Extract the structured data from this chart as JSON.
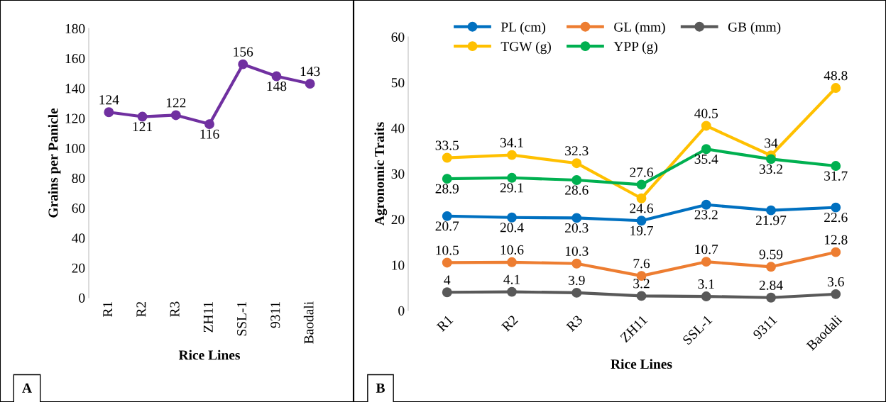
{
  "chart_data": [
    {
      "type": "line",
      "xlabel": "Rice Lines",
      "ylabel": "Grains per Panicle",
      "categories": [
        "R1",
        "R2",
        "R3",
        "ZH11",
        "SSL-1",
        "9311",
        "Baodali"
      ],
      "series": [
        {
          "color": "#7030a0",
          "values": [
            124,
            121,
            122,
            116,
            156,
            148,
            143
          ]
        }
      ],
      "ylim": [
        0,
        180
      ],
      "yticks": [
        0,
        20,
        40,
        60,
        80,
        100,
        120,
        140,
        160,
        180
      ],
      "data_labels": true,
      "marker": "circle",
      "grid": false,
      "legend": false,
      "annotations": [
        "A"
      ]
    },
    {
      "type": "line",
      "xlabel": "Rice Lines",
      "ylabel": "Agronomic Traits",
      "categories": [
        "R1",
        "R2",
        "R3",
        "ZH11",
        "SSL-1",
        "9311",
        "Baodali"
      ],
      "series": [
        {
          "name": "PL (cm)",
          "color": "#0070c0",
          "values": [
            20.7,
            20.4,
            20.3,
            19.7,
            23.2,
            21.97,
            22.6
          ]
        },
        {
          "name": "GL (mm)",
          "color": "#ed7d31",
          "values": [
            10.5,
            10.6,
            10.3,
            7.6,
            10.7,
            9.59,
            12.8
          ]
        },
        {
          "name": "GB (mm)",
          "color": "#595959",
          "values": [
            4,
            4.1,
            3.9,
            3.2,
            3.1,
            2.84,
            3.6
          ]
        },
        {
          "name": "TGW (g)",
          "color": "#ffc000",
          "values": [
            33.5,
            34.1,
            32.3,
            24.6,
            40.5,
            34,
            48.8
          ]
        },
        {
          "name": "YPP (g)",
          "color": "#00b050",
          "values": [
            28.9,
            29.1,
            28.6,
            27.6,
            35.4,
            33.2,
            31.7
          ]
        }
      ],
      "ylim": [
        0,
        60
      ],
      "yticks": [
        0,
        10,
        20,
        30,
        40,
        50,
        60
      ],
      "data_labels": true,
      "marker": "circle",
      "grid": false,
      "legend": "top",
      "annotations": [
        "B"
      ]
    }
  ]
}
